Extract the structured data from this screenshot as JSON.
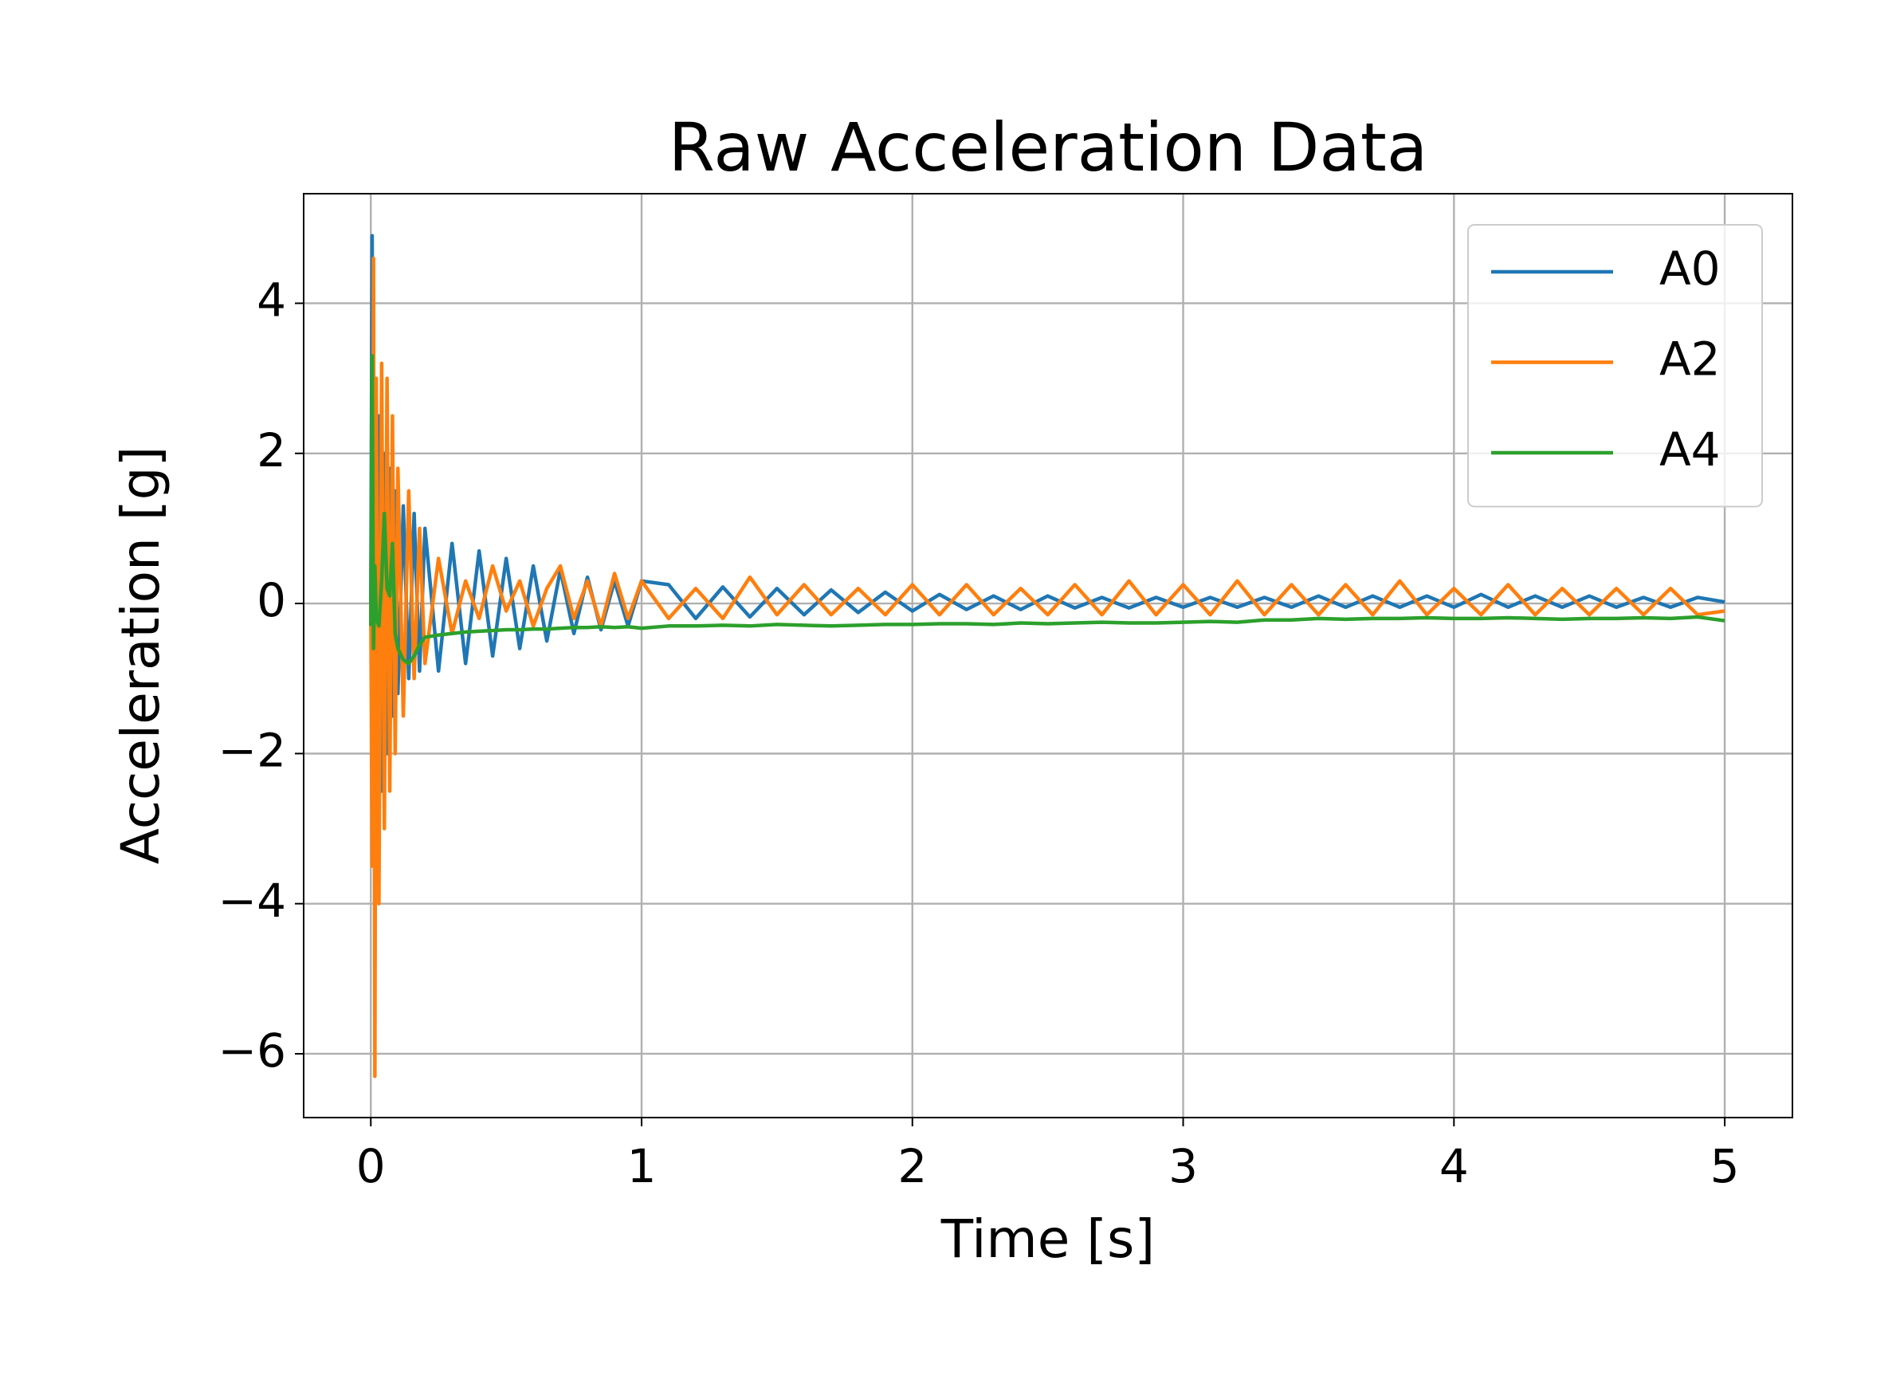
{
  "chart_data": {
    "type": "line",
    "title": "Raw Acceleration Data",
    "x_label": "Time [s]",
    "y_label": "Acceleration [g]",
    "x": [
      0,
      0.005,
      0.01,
      0.015,
      0.02,
      0.03,
      0.04,
      0.05,
      0.06,
      0.07,
      0.08,
      0.09,
      0.1,
      0.12,
      0.14,
      0.16,
      0.18,
      0.2,
      0.25,
      0.3,
      0.35,
      0.4,
      0.45,
      0.5,
      0.55,
      0.6,
      0.65,
      0.7,
      0.75,
      0.8,
      0.85,
      0.9,
      0.95,
      1.0,
      1.1,
      1.2,
      1.3,
      1.4,
      1.5,
      1.6,
      1.7,
      1.8,
      1.9,
      2.0,
      2.1,
      2.2,
      2.3,
      2.4,
      2.5,
      2.6,
      2.7,
      2.8,
      2.9,
      3.0,
      3.1,
      3.2,
      3.3,
      3.4,
      3.5,
      3.6,
      3.7,
      3.8,
      3.9,
      4.0,
      4.1,
      4.2,
      4.3,
      4.4,
      4.5,
      4.6,
      4.7,
      4.8,
      4.9,
      5.0
    ],
    "series": [
      {
        "name": "A0",
        "color": "#1f77b4",
        "values": [
          0,
          4.9,
          -2,
          3,
          -1.5,
          2.5,
          -2.5,
          2,
          -2,
          1.8,
          -1.5,
          1.5,
          -1.2,
          1.3,
          -1,
          1.2,
          -0.9,
          1,
          -0.9,
          0.8,
          -0.8,
          0.7,
          -0.7,
          0.6,
          -0.6,
          0.5,
          -0.5,
          0.45,
          -0.4,
          0.35,
          -0.35,
          0.3,
          -0.3,
          0.3,
          0.25,
          -0.2,
          0.22,
          -0.18,
          0.2,
          -0.15,
          0.18,
          -0.12,
          0.15,
          -0.1,
          0.12,
          -0.08,
          0.1,
          -0.08,
          0.1,
          -0.06,
          0.08,
          -0.06,
          0.08,
          -0.05,
          0.08,
          -0.05,
          0.08,
          -0.05,
          0.1,
          -0.05,
          0.1,
          -0.05,
          0.1,
          -0.05,
          0.12,
          -0.05,
          0.1,
          -0.05,
          0.1,
          -0.05,
          0.08,
          -0.05,
          0.08,
          0.02
        ]
      },
      {
        "name": "A2",
        "color": "#ff7f0e",
        "values": [
          0,
          -3.5,
          4.6,
          -6.3,
          3,
          -4,
          3.2,
          -3,
          3,
          -2.5,
          2.5,
          -2,
          1.8,
          -1.5,
          1.5,
          -1,
          1,
          -0.8,
          0.6,
          -0.4,
          0.3,
          -0.2,
          0.5,
          -0.1,
          0.3,
          -0.3,
          0.2,
          0.5,
          -0.2,
          0.3,
          -0.3,
          0.4,
          -0.2,
          0.3,
          -0.2,
          0.2,
          -0.2,
          0.35,
          -0.15,
          0.25,
          -0.15,
          0.2,
          -0.15,
          0.25,
          -0.15,
          0.25,
          -0.15,
          0.2,
          -0.15,
          0.25,
          -0.15,
          0.3,
          -0.15,
          0.25,
          -0.15,
          0.3,
          -0.15,
          0.25,
          -0.15,
          0.25,
          -0.15,
          0.3,
          -0.15,
          0.2,
          -0.15,
          0.25,
          -0.15,
          0.2,
          -0.15,
          0.2,
          -0.15,
          0.2,
          -0.15,
          -0.1
        ]
      },
      {
        "name": "A4",
        "color": "#2ca02c",
        "values": [
          -0.3,
          3.3,
          -0.6,
          0.5,
          -0.2,
          -0.3,
          0.3,
          1.2,
          0.2,
          0.1,
          0.8,
          -0.4,
          -0.6,
          -0.75,
          -0.8,
          -0.7,
          -0.55,
          -0.45,
          -0.42,
          -0.4,
          -0.38,
          -0.37,
          -0.36,
          -0.35,
          -0.35,
          -0.34,
          -0.34,
          -0.33,
          -0.32,
          -0.32,
          -0.31,
          -0.32,
          -0.31,
          -0.33,
          -0.3,
          -0.3,
          -0.29,
          -0.3,
          -0.28,
          -0.29,
          -0.3,
          -0.29,
          -0.28,
          -0.28,
          -0.27,
          -0.27,
          -0.28,
          -0.26,
          -0.27,
          -0.26,
          -0.25,
          -0.26,
          -0.26,
          -0.25,
          -0.24,
          -0.25,
          -0.22,
          -0.22,
          -0.2,
          -0.21,
          -0.2,
          -0.2,
          -0.19,
          -0.2,
          -0.2,
          -0.19,
          -0.2,
          -0.21,
          -0.2,
          -0.2,
          -0.19,
          -0.2,
          -0.18,
          -0.23
        ]
      }
    ],
    "xlim": [
      -0.248,
      5.25
    ],
    "ylim": [
      -6.85,
      5.46
    ],
    "xticks": [
      0,
      1,
      2,
      3,
      4,
      5
    ],
    "yticks": [
      {
        "value": -6,
        "label": "−6"
      },
      {
        "value": -4,
        "label": "−4"
      },
      {
        "value": -2,
        "label": "−2"
      },
      0,
      2,
      4
    ],
    "grid": true,
    "legend": "upper right"
  }
}
